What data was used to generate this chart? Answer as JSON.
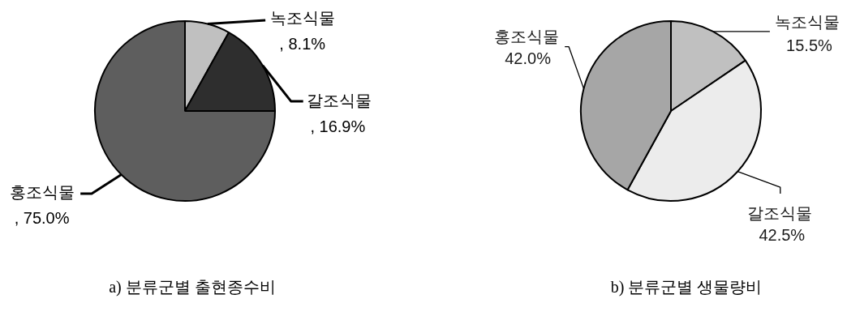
{
  "chart_data": [
    {
      "type": "pie",
      "title": "a) 분류군별 출현종수비",
      "categories": [
        "녹조식물",
        "갈조식물",
        "홍조식물"
      ],
      "values": [
        8.1,
        16.9,
        75.0
      ],
      "colors": [
        "#c0c0c0",
        "#2e2e2e",
        "#5e5e5e"
      ],
      "value_labels": [
        ", 8.1%",
        ", 16.9%",
        ", 75.0%"
      ]
    },
    {
      "type": "pie",
      "title": "b) 분류군별 생물량비",
      "categories": [
        "녹조식물",
        "갈조식물",
        "홍조식물"
      ],
      "values": [
        15.5,
        42.5,
        42.0
      ],
      "colors": [
        "#c0c0c0",
        "#ececec",
        "#a6a6a6"
      ],
      "value_labels": [
        "15.5%",
        "42.5%",
        "42.0%"
      ]
    }
  ]
}
